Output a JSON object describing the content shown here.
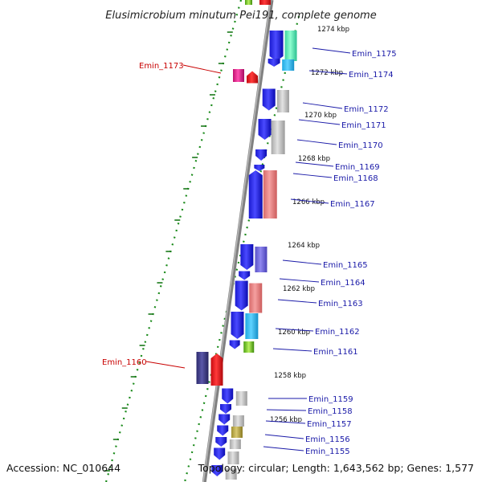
{
  "title": "Elusimicrobium minutum Pei191, complete genome",
  "accession": "Accession: NC_010644",
  "summary": "Topology: circular; Length: 1,643,562 bp; Genes: 1,577",
  "colors": {
    "forward_strand": "#1010e0",
    "reverse_strand_red": "#e8121a",
    "reverse_strand_magenta": "#e6178a",
    "dark_purple": "#3c3a85",
    "backbone": "#8a8a8a",
    "tick_green": "#1a7a1a",
    "blue_label": "#1a1aa8",
    "red_label": "#c80000"
  },
  "kbp_marks": [
    {
      "label": "1274 kbp"
    },
    {
      "label": "1272 kbp"
    },
    {
      "label": "1270 kbp"
    },
    {
      "label": "1268 kbp"
    },
    {
      "label": "1266 kbp"
    },
    {
      "label": "1264 kbp"
    },
    {
      "label": "1262 kbp"
    },
    {
      "label": "1260 kbp"
    },
    {
      "label": "1258 kbp"
    },
    {
      "label": "1256 kbp"
    }
  ],
  "gene_labels": [
    {
      "name": "Emin_1175",
      "color": "blue"
    },
    {
      "name": "Emin_1174",
      "color": "blue"
    },
    {
      "name": "Emin_1173",
      "color": "red"
    },
    {
      "name": "Emin_1172",
      "color": "blue"
    },
    {
      "name": "Emin_1171",
      "color": "blue"
    },
    {
      "name": "Emin_1170",
      "color": "blue"
    },
    {
      "name": "Emin_1169",
      "color": "blue"
    },
    {
      "name": "Emin_1168",
      "color": "blue"
    },
    {
      "name": "Emin_1167",
      "color": "blue"
    },
    {
      "name": "Emin_1165",
      "color": "blue"
    },
    {
      "name": "Emin_1164",
      "color": "blue"
    },
    {
      "name": "Emin_1163",
      "color": "blue"
    },
    {
      "name": "Emin_1162",
      "color": "blue"
    },
    {
      "name": "Emin_1161",
      "color": "blue"
    },
    {
      "name": "Emin_1160",
      "color": "red"
    },
    {
      "name": "Emin_1159",
      "color": "blue"
    },
    {
      "name": "Emin_1158",
      "color": "blue"
    },
    {
      "name": "Emin_1157",
      "color": "blue"
    },
    {
      "name": "Emin_1156",
      "color": "blue"
    },
    {
      "name": "Emin_1155",
      "color": "blue"
    }
  ]
}
